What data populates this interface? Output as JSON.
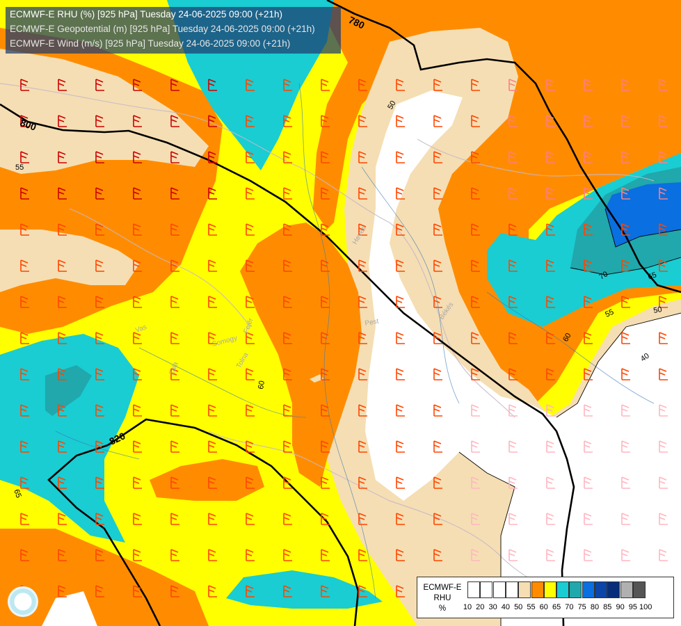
{
  "header": {
    "line1": "ECMWF-E RHU (%) [925 hPa] Tuesday 24-06-2025 09:00 (+21h)",
    "line2": "ECMWF-E Geopotential (m) [925 hPa] Tuesday 24-06-2025 09:00 (+21h)",
    "line3": "ECMWF-E Wind (m/s) [925 hPa] Tuesday 24-06-2025 09:00 (+21h)"
  },
  "legend": {
    "title_line1": "ECMWF-E",
    "title_line2": "RHU",
    "title_line3": "%",
    "bins": [
      {
        "color": "#ffffff"
      },
      {
        "color": "#ffffff"
      },
      {
        "color": "#ffffff"
      },
      {
        "color": "#ffffff"
      },
      {
        "color": "#f5deb3"
      },
      {
        "color": "#ff8c00"
      },
      {
        "color": "#ffff00"
      },
      {
        "color": "#19cdd2"
      },
      {
        "color": "#20a8ac"
      },
      {
        "color": "#0a6fe0"
      },
      {
        "color": "#0b45a8"
      },
      {
        "color": "#082d78"
      },
      {
        "color": "#b0b0b0"
      },
      {
        "color": "#555555"
      }
    ],
    "ticks": [
      "10",
      "20",
      "30",
      "40",
      "50",
      "55",
      "60",
      "65",
      "70",
      "75",
      "80",
      "85",
      "90",
      "95",
      "100"
    ]
  },
  "contours": {
    "geopotential_labels": [
      "780",
      "800",
      "820"
    ],
    "rhu_labels": [
      "50",
      "55",
      "60",
      "65",
      "70",
      "40",
      "50",
      "55",
      "60",
      "65"
    ]
  },
  "places": [
    "Heves",
    "Pest",
    "Békés",
    "Somogy",
    "Fejér",
    "Tolna",
    "Zala",
    "Vas"
  ],
  "colors": {
    "white": "#ffffff",
    "tan": "#f5deb3",
    "orange": "#ff8c00",
    "yellow": "#ffff00",
    "cyan": "#19cdd2",
    "teal": "#20a8ac",
    "blue": "#0a6fe0",
    "contour": "#000000"
  }
}
